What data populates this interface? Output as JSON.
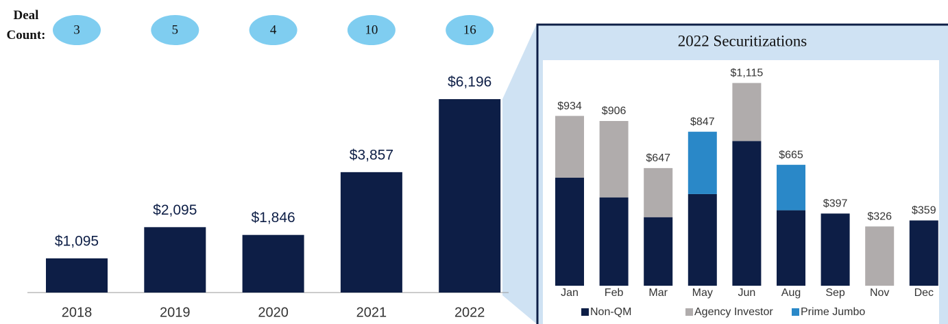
{
  "chart_data": [
    {
      "type": "bar",
      "deal_count_label": "Deal Count:",
      "deal_counts": [
        3,
        5,
        4,
        10,
        16
      ],
      "categories": [
        "2018",
        "2019",
        "2020",
        "2021",
        "2022"
      ],
      "values": [
        1095,
        2095,
        1846,
        3857,
        6196
      ],
      "value_labels": [
        "$1,095",
        "$2,095",
        "$1,846",
        "$3,857",
        "$6,196"
      ],
      "color": "#0d1e46"
    },
    {
      "type": "stacked_bar",
      "title": "2022 Securitizations",
      "categories": [
        "Jan",
        "Feb",
        "Mar",
        "May",
        "Jun",
        "Aug",
        "Sep",
        "Nov",
        "Dec"
      ],
      "series": [
        {
          "name": "Non-QM",
          "color": "#0d1e46",
          "values": [
            594,
            486,
            377,
            504,
            796,
            415,
            397,
            null,
            359
          ]
        },
        {
          "name": "Agency Investor",
          "color": "#b0acac",
          "values": [
            340,
            420,
            270,
            null,
            319,
            null,
            null,
            326,
            null
          ]
        },
        {
          "name": "Prime Jumbo",
          "color": "#2a88c8",
          "values": [
            null,
            null,
            null,
            343,
            null,
            250,
            null,
            null,
            null
          ]
        }
      ],
      "totals": [
        934,
        906,
        647,
        847,
        1115,
        665,
        397,
        326,
        359
      ],
      "total_labels": [
        "$934",
        "$906",
        "$647",
        "$847",
        "$1,115",
        "$665",
        "$397",
        "$326",
        "$359"
      ]
    }
  ]
}
